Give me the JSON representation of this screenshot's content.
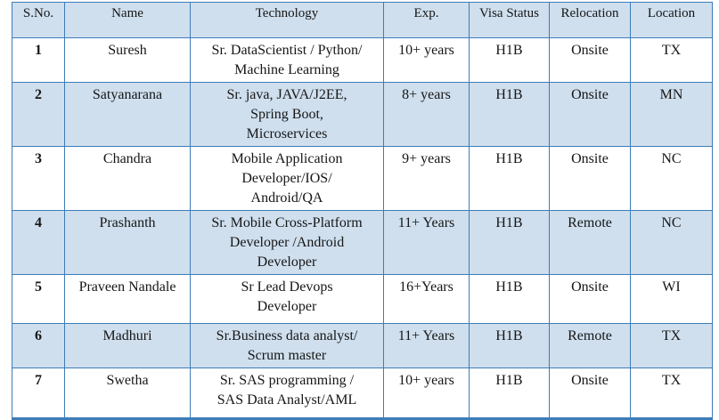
{
  "colors": {
    "border_blue": "#3e7cb7",
    "band_fill": "#cfdfee",
    "text": "#161616",
    "page_background": "#ffffff"
  },
  "table": {
    "columns": {
      "sno": "S.No.",
      "name": "Name",
      "technology": "Technology",
      "exp": "Exp.",
      "visa": "Visa Status",
      "relocation": "Relocation",
      "location": "Location"
    },
    "rows": [
      {
        "sno": "1",
        "name": "Suresh",
        "technology": "Sr. DataScientist / Python/\nMachine Learning",
        "exp": "10+ years",
        "visa": "H1B",
        "relocation": "Onsite",
        "location": "TX"
      },
      {
        "sno": "2",
        "name": "Satyanarana",
        "technology": "Sr.  java, JAVA/J2EE,\nSpring Boot,\nMicroservices",
        "exp": "8+ years",
        "visa": "H1B",
        "relocation": "Onsite",
        "location": "MN"
      },
      {
        "sno": "3",
        "name": "Chandra",
        "technology": "Mobile Application\nDeveloper/IOS/\nAndroid/QA",
        "exp": "9+ years",
        "visa": "H1B",
        "relocation": "Onsite",
        "location": "NC"
      },
      {
        "sno": "4",
        "name": "Prashanth",
        "technology": "Sr. Mobile Cross-Platform\nDeveloper /Android\nDeveloper",
        "exp": "11+ Years",
        "visa": "H1B",
        "relocation": "Remote",
        "location": "NC"
      },
      {
        "sno": "5",
        "name": "Praveen Nandale",
        "technology": "Sr Lead Devops\nDeveloper",
        "exp": "16+Years",
        "visa": "H1B",
        "relocation": "Onsite",
        "location": "WI"
      },
      {
        "sno": "6",
        "name": "Madhuri",
        "technology": "Sr.Business data analyst/\nScrum master",
        "exp": "11+ Years",
        "visa": "H1B",
        "relocation": "Remote",
        "location": "TX"
      },
      {
        "sno": "7",
        "name": "Swetha",
        "technology": "Sr. SAS programming /\nSAS Data Analyst/AML",
        "exp": "10+ years",
        "visa": "H1B",
        "relocation": "Onsite",
        "location": "TX"
      }
    ]
  }
}
